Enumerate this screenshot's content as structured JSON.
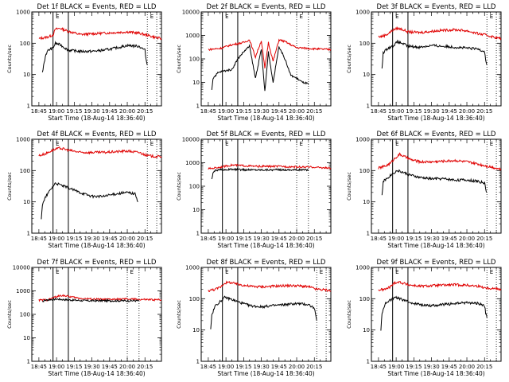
{
  "figure": {
    "background": "#ffffff",
    "colors": {
      "events": "#000000",
      "lld": "#e00000",
      "axes": "#000000"
    }
  },
  "chart_data": [
    {
      "type": "line",
      "title": "Det 1f BLACK = Events, RED = LLD",
      "xlabel": "Start Time (18-Aug-14 18:36:40)",
      "ylabel": "Counts/sec",
      "xticks": [
        "18:45",
        "19:00",
        "19:15",
        "19:30",
        "19:45",
        "20:00",
        "20:15"
      ],
      "xlim_minutes": [
        -6,
        104
      ],
      "ylim": [
        1,
        1000
      ],
      "yscale": "log",
      "yticks": [
        "1",
        "10",
        "100",
        "1000"
      ],
      "vlines_solid_minutes": [
        12,
        25
      ],
      "vlines_dotted_minutes": [
        92,
        100
      ],
      "markers": [
        {
          "text": "E",
          "x_minutes": 13
        },
        {
          "text": "E",
          "x_minutes": 93
        }
      ],
      "series": [
        {
          "role": "LLD",
          "color": "#e00000",
          "x_minutes": [
            0,
            4,
            8,
            12,
            14,
            18,
            25,
            35,
            45,
            55,
            65,
            75,
            85,
            92,
            100,
            104
          ],
          "values": [
            140,
            150,
            160,
            185,
            280,
            300,
            240,
            190,
            200,
            210,
            220,
            230,
            210,
            180,
            150,
            140
          ]
        },
        {
          "role": "Events",
          "color": "#000000",
          "x_minutes": [
            3,
            4,
            6,
            8,
            12,
            14,
            18,
            25,
            35,
            45,
            55,
            65,
            75,
            85,
            90,
            91,
            92
          ],
          "values": [
            11,
            20,
            45,
            60,
            70,
            100,
            90,
            60,
            55,
            55,
            60,
            70,
            85,
            80,
            60,
            30,
            20
          ]
        }
      ]
    },
    {
      "type": "line",
      "title": "Det 2f BLACK = Events, RED = LLD",
      "xlabel": "Start Time (18-Aug-14 18:36:40)",
      "ylabel": "Counts/sec",
      "xticks": [
        "18:45",
        "19:00",
        "19:15",
        "19:30",
        "19:45",
        "20:00",
        "20:15"
      ],
      "xlim_minutes": [
        -6,
        104
      ],
      "ylim": [
        1,
        10000
      ],
      "yscale": "log",
      "yticks": [
        "1",
        "10",
        "100",
        "1000",
        "10000"
      ],
      "vlines_solid_minutes": [
        12,
        25
      ],
      "vlines_dotted_minutes": [
        75,
        85
      ],
      "markers": [
        {
          "text": "E",
          "x_minutes": 13
        },
        {
          "text": "E",
          "x_minutes": 76
        }
      ],
      "series": [
        {
          "role": "LLD",
          "color": "#e00000",
          "x_minutes": [
            0,
            10,
            20,
            30,
            35,
            40,
            45,
            48,
            51,
            55,
            60,
            65,
            70,
            75,
            85,
            95,
            104
          ],
          "values": [
            250,
            280,
            400,
            500,
            650,
            120,
            600,
            40,
            500,
            80,
            650,
            550,
            400,
            300,
            280,
            260,
            250
          ]
        },
        {
          "role": "Events",
          "color": "#000000",
          "x_minutes": [
            3,
            4,
            8,
            12,
            20,
            25,
            30,
            35,
            40,
            45,
            48,
            51,
            55,
            60,
            65,
            70,
            75,
            80,
            84,
            85
          ],
          "values": [
            5,
            15,
            25,
            30,
            35,
            100,
            200,
            350,
            15,
            250,
            4,
            200,
            10,
            350,
            100,
            20,
            15,
            10,
            9,
            8
          ]
        }
      ]
    },
    {
      "type": "line",
      "title": "Det 3f BLACK = Events, RED = LLD",
      "xlabel": "Start Time (18-Aug-14 18:36:40)",
      "ylabel": "Counts/sec",
      "xticks": [
        "18:45",
        "19:00",
        "19:15",
        "19:30",
        "19:45",
        "20:00",
        "20:15"
      ],
      "xlim_minutes": [
        -6,
        104
      ],
      "ylim": [
        1,
        1000
      ],
      "yscale": "log",
      "yticks": [
        "1",
        "10",
        "100",
        "1000"
      ],
      "vlines_solid_minutes": [
        12,
        25
      ],
      "vlines_dotted_minutes": [
        92,
        100
      ],
      "markers": [
        {
          "text": "E",
          "x_minutes": 13
        },
        {
          "text": "E",
          "x_minutes": 93
        }
      ],
      "series": [
        {
          "role": "LLD",
          "color": "#e00000",
          "x_minutes": [
            0,
            4,
            8,
            12,
            16,
            20,
            25,
            35,
            45,
            55,
            65,
            75,
            85,
            92,
            100,
            104
          ],
          "values": [
            160,
            170,
            200,
            260,
            300,
            280,
            230,
            220,
            240,
            260,
            270,
            250,
            200,
            180,
            150,
            140
          ]
        },
        {
          "role": "Events",
          "color": "#000000",
          "x_minutes": [
            3,
            4,
            8,
            12,
            16,
            20,
            25,
            35,
            45,
            55,
            65,
            75,
            85,
            90,
            91,
            92
          ],
          "values": [
            15,
            50,
            70,
            80,
            110,
            100,
            80,
            75,
            85,
            80,
            75,
            70,
            65,
            55,
            30,
            20
          ]
        }
      ]
    },
    {
      "type": "line",
      "title": "Det 4f BLACK = Events, RED = LLD",
      "xlabel": "Start Time (18-Aug-14 18:36:40)",
      "ylabel": "Counts/sec",
      "xticks": [
        "18:45",
        "19:00",
        "19:15",
        "19:30",
        "19:45",
        "20:00",
        "20:15"
      ],
      "xlim_minutes": [
        -6,
        104
      ],
      "ylim": [
        1,
        1000
      ],
      "yscale": "log",
      "yticks": [
        "1",
        "10",
        "100",
        "1000"
      ],
      "vlines_solid_minutes": [
        12,
        25
      ],
      "vlines_dotted_minutes": [
        92,
        100
      ],
      "markers": [
        {
          "text": "E",
          "x_minutes": 13
        },
        {
          "text": "E",
          "x_minutes": 93
        }
      ],
      "series": [
        {
          "role": "LLD",
          "color": "#e00000",
          "x_minutes": [
            0,
            6,
            10,
            14,
            18,
            25,
            35,
            45,
            55,
            65,
            75,
            85,
            92,
            100,
            104
          ],
          "values": [
            300,
            350,
            420,
            480,
            520,
            450,
            380,
            380,
            380,
            400,
            420,
            380,
            300,
            280,
            280
          ]
        },
        {
          "role": "Events",
          "color": "#000000",
          "x_minutes": [
            2,
            3,
            6,
            10,
            14,
            18,
            25,
            35,
            45,
            55,
            65,
            75,
            82,
            83,
            84
          ],
          "values": [
            3,
            8,
            15,
            25,
            40,
            35,
            28,
            20,
            15,
            15,
            18,
            20,
            18,
            12,
            10
          ]
        }
      ]
    },
    {
      "type": "line",
      "title": "Det 5f BLACK = Events, RED = LLD",
      "xlabel": "Start Time (18-Aug-14 18:36:40)",
      "ylabel": "Counts/sec",
      "xticks": [
        "18:45",
        "19:00",
        "19:15",
        "19:30",
        "19:45",
        "20:00",
        "20:15"
      ],
      "xlim_minutes": [
        -6,
        104
      ],
      "ylim": [
        1,
        10000
      ],
      "yscale": "log",
      "yticks": [
        "1",
        "10",
        "100",
        "1000",
        "10000"
      ],
      "vlines_solid_minutes": [
        12,
        25
      ],
      "vlines_dotted_minutes": [
        75,
        85
      ],
      "markers": [
        {
          "text": "E",
          "x_minutes": 13
        },
        {
          "text": "E",
          "x_minutes": 76
        }
      ],
      "series": [
        {
          "role": "LLD",
          "color": "#e00000",
          "x_minutes": [
            0,
            10,
            20,
            30,
            40,
            50,
            60,
            70,
            80,
            90,
            100,
            104
          ],
          "values": [
            550,
            650,
            800,
            750,
            700,
            700,
            700,
            680,
            650,
            650,
            600,
            580
          ]
        },
        {
          "role": "Events",
          "color": "#000000",
          "x_minutes": [
            3,
            4,
            5,
            10,
            20,
            30,
            40,
            50,
            60,
            70,
            80,
            85
          ],
          "values": [
            200,
            350,
            450,
            500,
            520,
            500,
            500,
            500,
            500,
            500,
            500,
            500
          ]
        }
      ]
    },
    {
      "type": "line",
      "title": "Det 6f BLACK = Events, RED = LLD",
      "xlabel": "Start Time (18-Aug-14 18:36:40)",
      "ylabel": "Counts/sec",
      "xticks": [
        "18:45",
        "19:00",
        "19:15",
        "19:30",
        "19:45",
        "20:00",
        "20:15"
      ],
      "xlim_minutes": [
        -6,
        104
      ],
      "ylim": [
        1,
        1000
      ],
      "yscale": "log",
      "yticks": [
        "1",
        "10",
        "100",
        "1000"
      ],
      "vlines_solid_minutes": [
        12,
        25
      ],
      "vlines_dotted_minutes": [
        92,
        100
      ],
      "markers": [
        {
          "text": "E",
          "x_minutes": 13
        },
        {
          "text": "E",
          "x_minutes": 93
        }
      ],
      "series": [
        {
          "role": "LLD",
          "color": "#e00000",
          "x_minutes": [
            0,
            6,
            10,
            14,
            18,
            22,
            28,
            35,
            45,
            55,
            65,
            75,
            85,
            92,
            100,
            104
          ],
          "values": [
            120,
            140,
            170,
            250,
            330,
            280,
            220,
            190,
            190,
            200,
            210,
            190,
            160,
            140,
            120,
            110
          ]
        },
        {
          "role": "Events",
          "color": "#000000",
          "x_minutes": [
            3,
            4,
            8,
            12,
            16,
            20,
            28,
            35,
            45,
            55,
            65,
            75,
            85,
            90,
            91,
            92
          ],
          "values": [
            15,
            45,
            60,
            80,
            100,
            90,
            70,
            60,
            55,
            55,
            50,
            50,
            45,
            40,
            25,
            20
          ]
        }
      ]
    },
    {
      "type": "line",
      "title": "Det 7f BLACK = Events, RED = LLD",
      "xlabel": "Start Time (18-Aug-14 18:36:40)",
      "ylabel": "Counts/sec",
      "xticks": [
        "18:45",
        "19:00",
        "19:15",
        "19:30",
        "19:45",
        "20:00",
        "20:15"
      ],
      "xlim_minutes": [
        -6,
        104
      ],
      "ylim": [
        1,
        10000
      ],
      "yscale": "log",
      "yticks": [
        "1",
        "10",
        "100",
        "1000",
        "10000"
      ],
      "vlines_solid_minutes": [
        12,
        25
      ],
      "vlines_dotted_minutes": [
        75,
        85
      ],
      "markers": [
        {
          "text": "E",
          "x_minutes": 13
        },
        {
          "text": "E",
          "x_minutes": 76
        }
      ],
      "series": [
        {
          "role": "LLD",
          "color": "#e00000",
          "x_minutes": [
            0,
            8,
            14,
            20,
            25,
            35,
            45,
            55,
            65,
            75,
            85,
            95,
            104
          ],
          "values": [
            400,
            420,
            550,
            650,
            580,
            480,
            450,
            430,
            440,
            450,
            430,
            420,
            420
          ]
        },
        {
          "role": "Events",
          "color": "#000000",
          "x_minutes": [
            3,
            5,
            10,
            15,
            20,
            30,
            40,
            50,
            60,
            70,
            80,
            85
          ],
          "values": [
            350,
            400,
            430,
            450,
            430,
            400,
            380,
            380,
            380,
            380,
            380,
            380
          ]
        }
      ]
    },
    {
      "type": "line",
      "title": "Det 8f BLACK = Events, RED = LLD",
      "xlabel": "Start Time (18-Aug-14 18:36:40)",
      "ylabel": "Counts/sec",
      "xticks": [
        "18:45",
        "19:00",
        "19:15",
        "19:30",
        "19:45",
        "20:00",
        "20:15"
      ],
      "xlim_minutes": [
        -6,
        104
      ],
      "ylim": [
        1,
        1000
      ],
      "yscale": "log",
      "yticks": [
        "1",
        "10",
        "100",
        "1000"
      ],
      "vlines_solid_minutes": [
        12,
        25
      ],
      "vlines_dotted_minutes": [
        92,
        100
      ],
      "markers": [
        {
          "text": "E",
          "x_minutes": 13
        },
        {
          "text": "E",
          "x_minutes": 93
        }
      ],
      "series": [
        {
          "role": "LLD",
          "color": "#e00000",
          "x_minutes": [
            0,
            6,
            10,
            14,
            18,
            25,
            35,
            45,
            55,
            65,
            75,
            85,
            92,
            100,
            104
          ],
          "values": [
            180,
            200,
            230,
            320,
            330,
            290,
            250,
            240,
            250,
            260,
            260,
            240,
            200,
            190,
            180
          ]
        },
        {
          "role": "Events",
          "color": "#000000",
          "x_minutes": [
            2,
            3,
            6,
            10,
            14,
            18,
            25,
            35,
            45,
            55,
            65,
            75,
            85,
            90,
            91,
            92
          ],
          "values": [
            10,
            30,
            60,
            80,
            110,
            100,
            80,
            60,
            55,
            60,
            65,
            70,
            65,
            50,
            30,
            20
          ]
        }
      ]
    },
    {
      "type": "line",
      "title": "Det 9f BLACK = Events, RED = LLD",
      "xlabel": "Start Time (18-Aug-14 18:36:40)",
      "ylabel": "Counts/sec",
      "xticks": [
        "18:45",
        "19:00",
        "19:15",
        "19:30",
        "19:45",
        "20:00",
        "20:15"
      ],
      "xlim_minutes": [
        -6,
        104
      ],
      "ylim": [
        1,
        1000
      ],
      "yscale": "log",
      "yticks": [
        "1",
        "10",
        "100",
        "1000"
      ],
      "vlines_solid_minutes": [
        12,
        25
      ],
      "vlines_dotted_minutes": [
        92,
        100
      ],
      "markers": [
        {
          "text": "E",
          "x_minutes": 13
        },
        {
          "text": "E",
          "x_minutes": 93
        }
      ],
      "series": [
        {
          "role": "LLD",
          "color": "#e00000",
          "x_minutes": [
            0,
            6,
            10,
            14,
            18,
            25,
            35,
            45,
            55,
            65,
            75,
            85,
            92,
            100,
            104
          ],
          "values": [
            190,
            200,
            240,
            330,
            340,
            280,
            250,
            260,
            270,
            280,
            270,
            250,
            220,
            210,
            200
          ]
        },
        {
          "role": "Events",
          "color": "#000000",
          "x_minutes": [
            2,
            3,
            6,
            10,
            14,
            18,
            25,
            35,
            45,
            55,
            65,
            75,
            85,
            90,
            91,
            92
          ],
          "values": [
            10,
            35,
            70,
            90,
            110,
            100,
            80,
            65,
            60,
            65,
            70,
            75,
            70,
            60,
            35,
            25
          ]
        }
      ]
    }
  ]
}
